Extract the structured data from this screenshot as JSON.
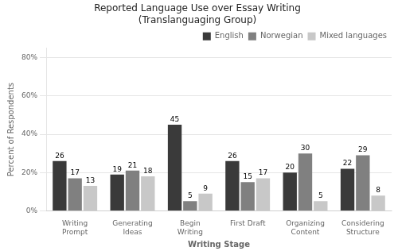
{
  "chart_data": {
    "type": "bar",
    "title": "Reported Language Use over Essay Writing\n(Translanguaging Group)",
    "xlabel": "Writing Stage",
    "ylabel": "Percent of Respondents",
    "categories": [
      "Writing\nPrompt",
      "Generating\nIdeas",
      "Begin\nWriting",
      "First Draft",
      "Organizing\nContent",
      "Considering\nStructure"
    ],
    "series": [
      {
        "name": "English",
        "color": "#3a3a3a",
        "values": [
          26,
          19,
          45,
          26,
          20,
          22
        ]
      },
      {
        "name": "Norwegian",
        "color": "#808080",
        "values": [
          17,
          21,
          5,
          15,
          30,
          29
        ]
      },
      {
        "name": "Mixed languages",
        "color": "#c8c8c8",
        "values": [
          13,
          18,
          9,
          17,
          5,
          8
        ]
      }
    ],
    "ylim": [
      0,
      85
    ],
    "yticks": [
      {
        "value": 0,
        "label": "0%"
      },
      {
        "value": 20,
        "label": "20%"
      },
      {
        "value": 40,
        "label": "40%"
      },
      {
        "value": 60,
        "label": "60%"
      },
      {
        "value": 80,
        "label": "80%"
      }
    ],
    "grid": true,
    "legend": "upper right",
    "data_labels": true
  }
}
